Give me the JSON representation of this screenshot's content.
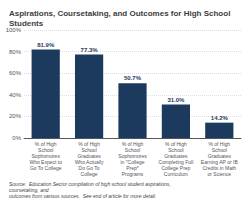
{
  "chart_data": {
    "type": "bar",
    "title": "Aspirations, Coursetaking, and Outcomes for High School Students",
    "categories": [
      "% of High\nSchool\nSophomores\nWho Expect to\nGo To College",
      "% of High\nSchool\nGraduates\nWho Actually\nDo Go To\nCollege",
      "% of High\nSchool\nSophomores\nin \"College\nPrep*\nPrograms",
      "% of High\nSchool\nGraduates\nCompleting Full\nCollege Prep\nCurriculum",
      "% of High\nSchool\nGraduates\nEarning AP or IB\nCredits in Math\nor Science"
    ],
    "values": [
      81.9,
      77.3,
      50.7,
      31.0,
      14.2
    ],
    "value_labels": [
      "81.9%",
      "77.3%",
      "50.7%",
      "31.0%",
      "14.2%"
    ],
    "data_labels": true,
    "color": "#1c3a5e",
    "ylim": [
      0,
      100
    ],
    "yticks": [
      {
        "value": 0,
        "label": "0%"
      },
      {
        "value": 20,
        "label": "20%"
      },
      {
        "value": 40,
        "label": "40%"
      },
      {
        "value": 60,
        "label": "60%"
      },
      {
        "value": 80,
        "label": "80%"
      },
      {
        "value": 100,
        "label": "100%"
      }
    ],
    "grid": true,
    "annotations": [
      "Source:  Education Sector compilation of high school student aspirations, coursetaking, and\noutcomes from various sources.  See end of article for more detail."
    ]
  }
}
